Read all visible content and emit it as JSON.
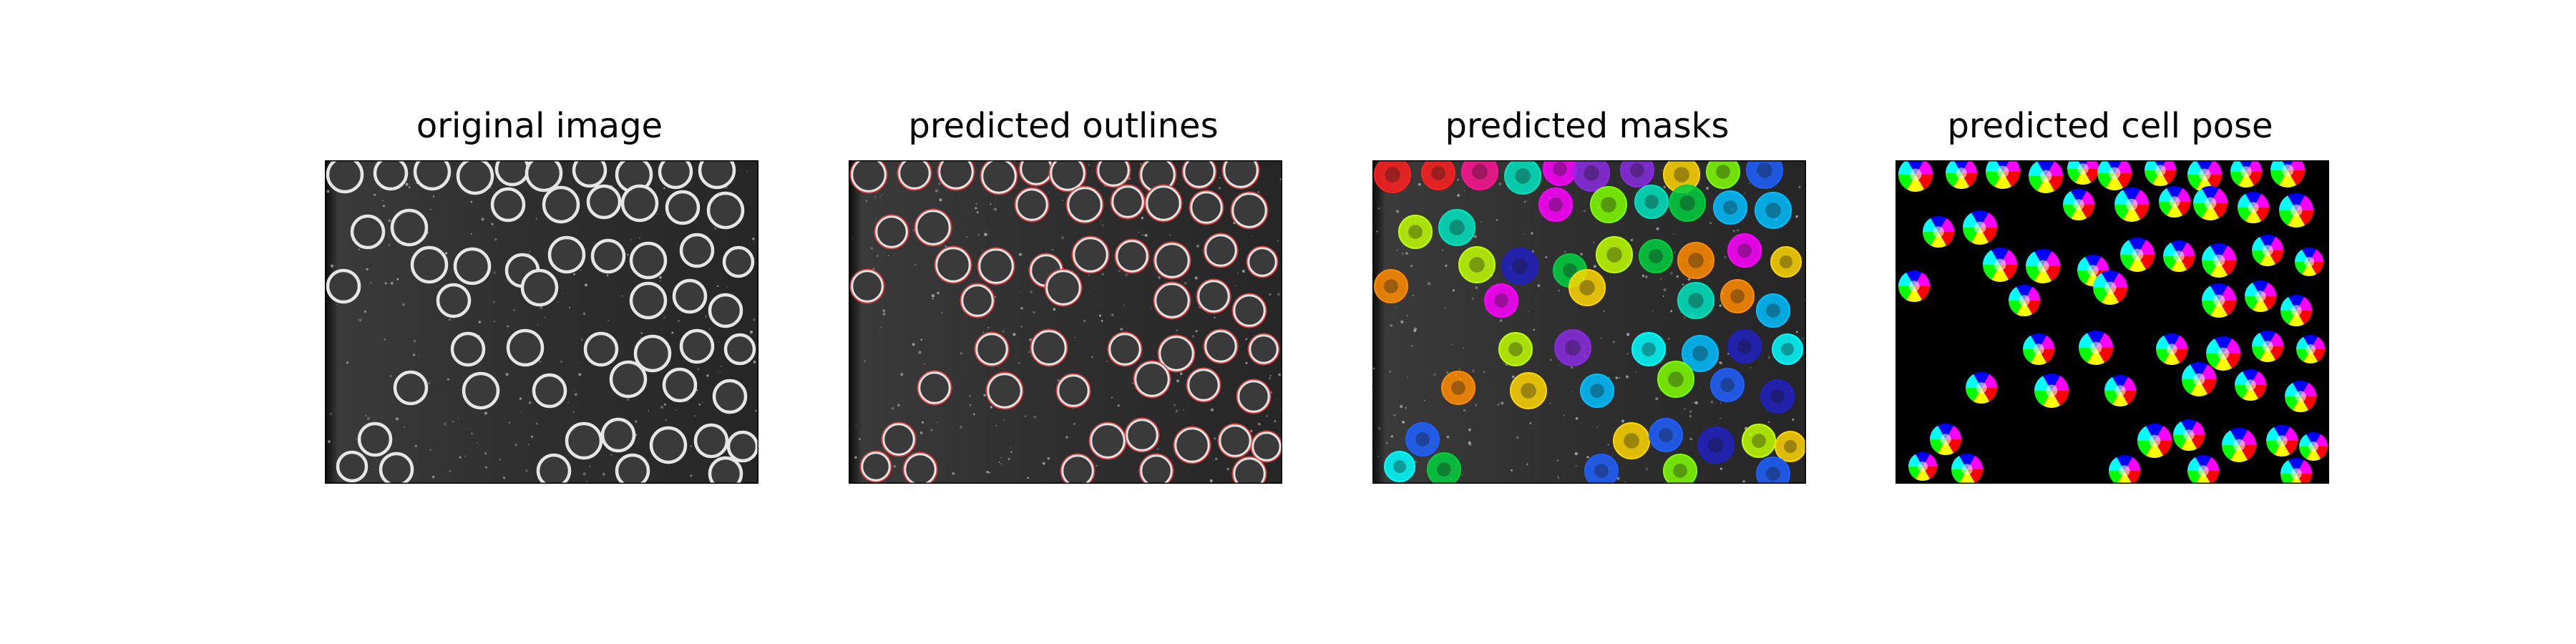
{
  "figure": {
    "panels": [
      {
        "id": "original",
        "title": "original image"
      },
      {
        "id": "outlines",
        "title": "predicted outlines"
      },
      {
        "id": "masks",
        "title": "predicted masks"
      },
      {
        "id": "pose",
        "title": "predicted cell pose"
      }
    ]
  },
  "colors": {
    "background": "#ffffff",
    "image_background": "#2a2a2a",
    "cell_ring": "#e6e6e6",
    "outline": "#e03030",
    "pose_background": "#000000",
    "mask_palette": [
      "#ff2020",
      "#ff8c00",
      "#ffd700",
      "#7fff00",
      "#00d040",
      "#00e5c0",
      "#00bfff",
      "#1e60ff",
      "#2020c0",
      "#8a2be2",
      "#ff00ff",
      "#ff1493",
      "#00ffff",
      "#c0ff00"
    ]
  }
}
